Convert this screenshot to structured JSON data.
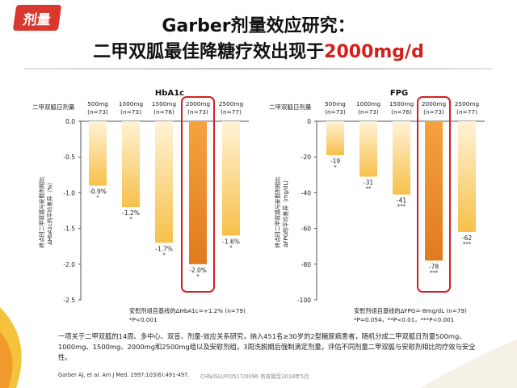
{
  "tag": "剂量",
  "title_line1": "Garber剂量效应研究：",
  "title_line2_prefix": "二甲双胍最佳降糖疗效出现于",
  "title_line2_highlight": "2000mg/d",
  "description": "一项关于二甲双胍的14周、多中心、双盲、剂量-效应关系研究，纳入451名≥30岁的2型糖尿病患者，随机分成二甲双胍日剂量500mg、1000mg、1500mg、2000mg和2500mg组以及安慰剂组，3周洗脱期后强制滴定剂量，评估不同剂量二甲双胍与安慰剂相比的疗效与安全性。",
  "reference": "Garber AJ, et al. Am J Med. 1997;103(6):491-497.",
  "code": "CHN/GLUP/0517/0096   有效期至2018年5月",
  "colors": {
    "bar_light": "#f7c04a",
    "bar_highlight": "#e07a1e",
    "box": "#d42020",
    "brand_red": "#d9382e"
  },
  "chart_data": [
    {
      "type": "bar",
      "title": "HbA1c",
      "row_label": "二甲双胍日剂量",
      "ylabel_line1": "终点时二甲双胍与安慰剂相比",
      "ylabel_line2": "ΔHbA1c的平均差异（%）",
      "categories": [
        "500mg\n(n=73)",
        "1000mg\n(n=73)",
        "1500mg\n(n=76)",
        "2000mg\n(n=73)",
        "2500mg\n(n=77)"
      ],
      "values": [
        -0.9,
        -1.2,
        -1.7,
        -2.0,
        -1.6
      ],
      "value_labels": [
        "-0.9%",
        "-1.2%",
        "-1.7%",
        "-2.0%",
        "-1.6%"
      ],
      "significance": [
        "*",
        "*",
        "*",
        "*",
        "*"
      ],
      "highlight_index": 3,
      "yticks": [
        "0.0",
        "-0.5",
        "-1.0",
        "-1.5",
        "-2.0",
        "-2.5"
      ],
      "ylim": [
        -2.5,
        0
      ],
      "footnote1": "安慰剂组自基线的ΔHbA1c=+1.2%  (n=79)",
      "footnote2": "*P<0.001"
    },
    {
      "type": "bar",
      "title": "FPG",
      "row_label": "二甲双胍日剂量",
      "ylabel_line1": "终点时二甲双胍与安慰剂相比",
      "ylabel_line2": "ΔFPG的平均差异（mg/dL）",
      "categories": [
        "500mg\n(n=73)",
        "1000mg\n(n=73)",
        "1500mg\n(n=76)",
        "2000mg\n(n=73)",
        "2500mg\n(n=77)"
      ],
      "values": [
        -19,
        -31,
        -41,
        -78,
        -62
      ],
      "value_labels": [
        "-19",
        "-31",
        "-41",
        "-78",
        "-62"
      ],
      "significance": [
        "*",
        "**",
        "***",
        "***",
        "***"
      ],
      "highlight_index": 3,
      "yticks": [
        "0",
        "-20",
        "-40",
        "-60",
        "-80",
        "-100"
      ],
      "ylim": [
        -100,
        0
      ],
      "footnote1": "安慰剂组自基线的ΔFPG=-8mg/dL  (n=79)",
      "footnote2": "*P=0.054，**P<0.01，***P<0.001"
    }
  ]
}
